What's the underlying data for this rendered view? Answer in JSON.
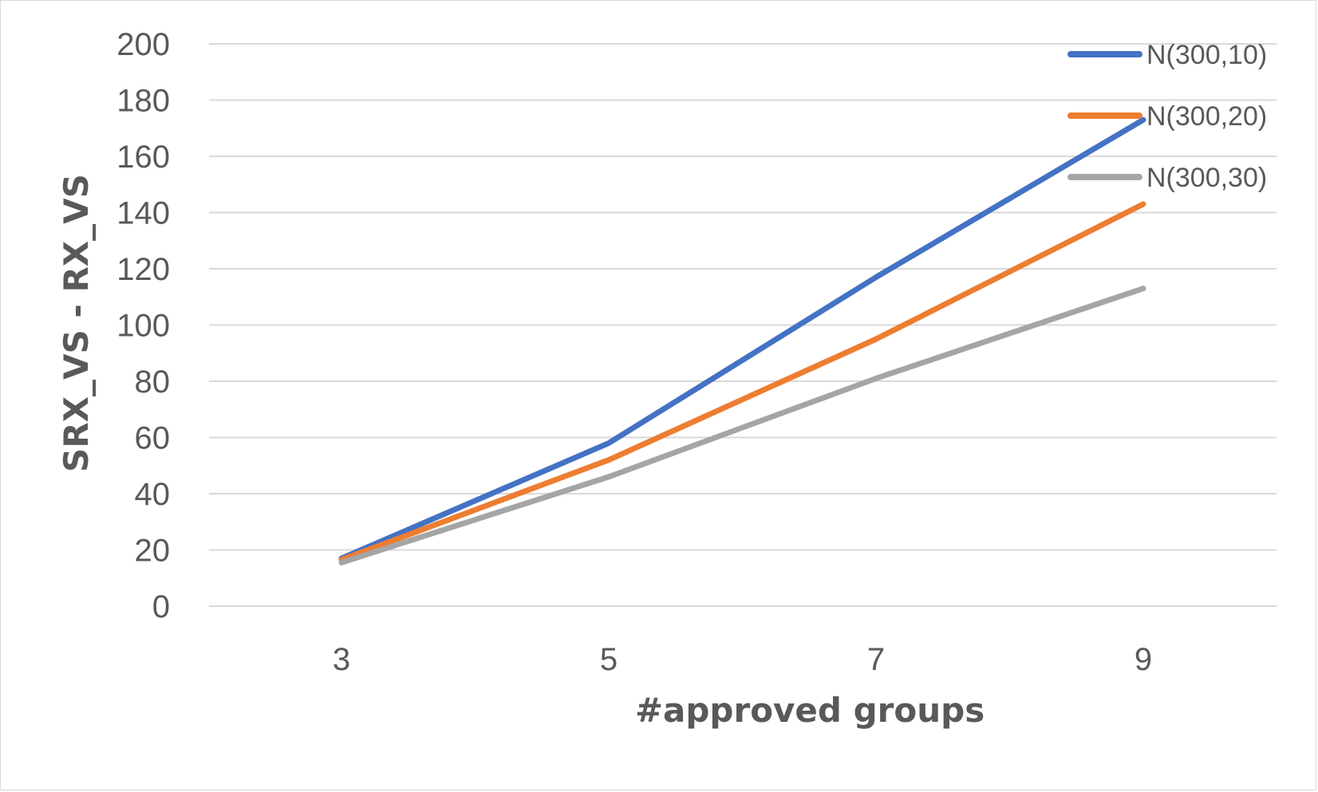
{
  "chart_data": {
    "type": "line",
    "title": "",
    "xlabel": "#approved groups",
    "ylabel": "SRX_VS - RX_VS",
    "categories": [
      "3",
      "5",
      "7",
      "9"
    ],
    "ylim": [
      0,
      200
    ],
    "yticks": [
      "0",
      "20",
      "40",
      "60",
      "80",
      "100",
      "120",
      "140",
      "160",
      "180",
      "200"
    ],
    "grid": true,
    "legend_position": "top-right",
    "series": [
      {
        "name": "N(300,10)",
        "color": "#4472C4",
        "values": [
          17,
          58,
          117,
          173
        ]
      },
      {
        "name": "N(300,20)",
        "color": "#ED7D31",
        "values": [
          16.5,
          52,
          95,
          143
        ]
      },
      {
        "name": "N(300,30)",
        "color": "#A5A5A5",
        "values": [
          15.5,
          46,
          81,
          113
        ]
      }
    ]
  }
}
